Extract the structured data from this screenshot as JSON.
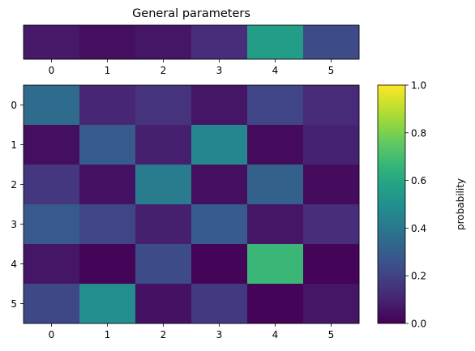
{
  "chart_data": [
    {
      "type": "heatmap",
      "title": "General parameters",
      "x_ticks": [
        "0",
        "1",
        "2",
        "3",
        "4",
        "5"
      ],
      "y_ticks": [],
      "values": [
        [
          0.07,
          0.04,
          0.06,
          0.13,
          0.55,
          0.23
        ]
      ]
    },
    {
      "type": "heatmap",
      "title": "",
      "x_ticks": [
        "0",
        "1",
        "2",
        "3",
        "4",
        "5"
      ],
      "y_ticks": [
        "0",
        "1",
        "2",
        "3",
        "4",
        "5"
      ],
      "values": [
        [
          0.35,
          0.11,
          0.15,
          0.06,
          0.21,
          0.12
        ],
        [
          0.04,
          0.29,
          0.09,
          0.46,
          0.03,
          0.1
        ],
        [
          0.16,
          0.05,
          0.42,
          0.04,
          0.31,
          0.03
        ],
        [
          0.28,
          0.21,
          0.09,
          0.29,
          0.06,
          0.13
        ],
        [
          0.06,
          0.01,
          0.23,
          0.01,
          0.67,
          0.01
        ],
        [
          0.22,
          0.49,
          0.05,
          0.17,
          0.01,
          0.06
        ]
      ]
    },
    {
      "type": "colorbar",
      "colormap": "viridis",
      "label": "probability",
      "range": [
        0,
        1
      ],
      "ticks": [
        "0.0",
        "0.2",
        "0.4",
        "0.6",
        "0.8",
        "1.0"
      ],
      "tick_values": [
        0.0,
        0.2,
        0.4,
        0.6,
        0.8,
        1.0
      ]
    }
  ]
}
